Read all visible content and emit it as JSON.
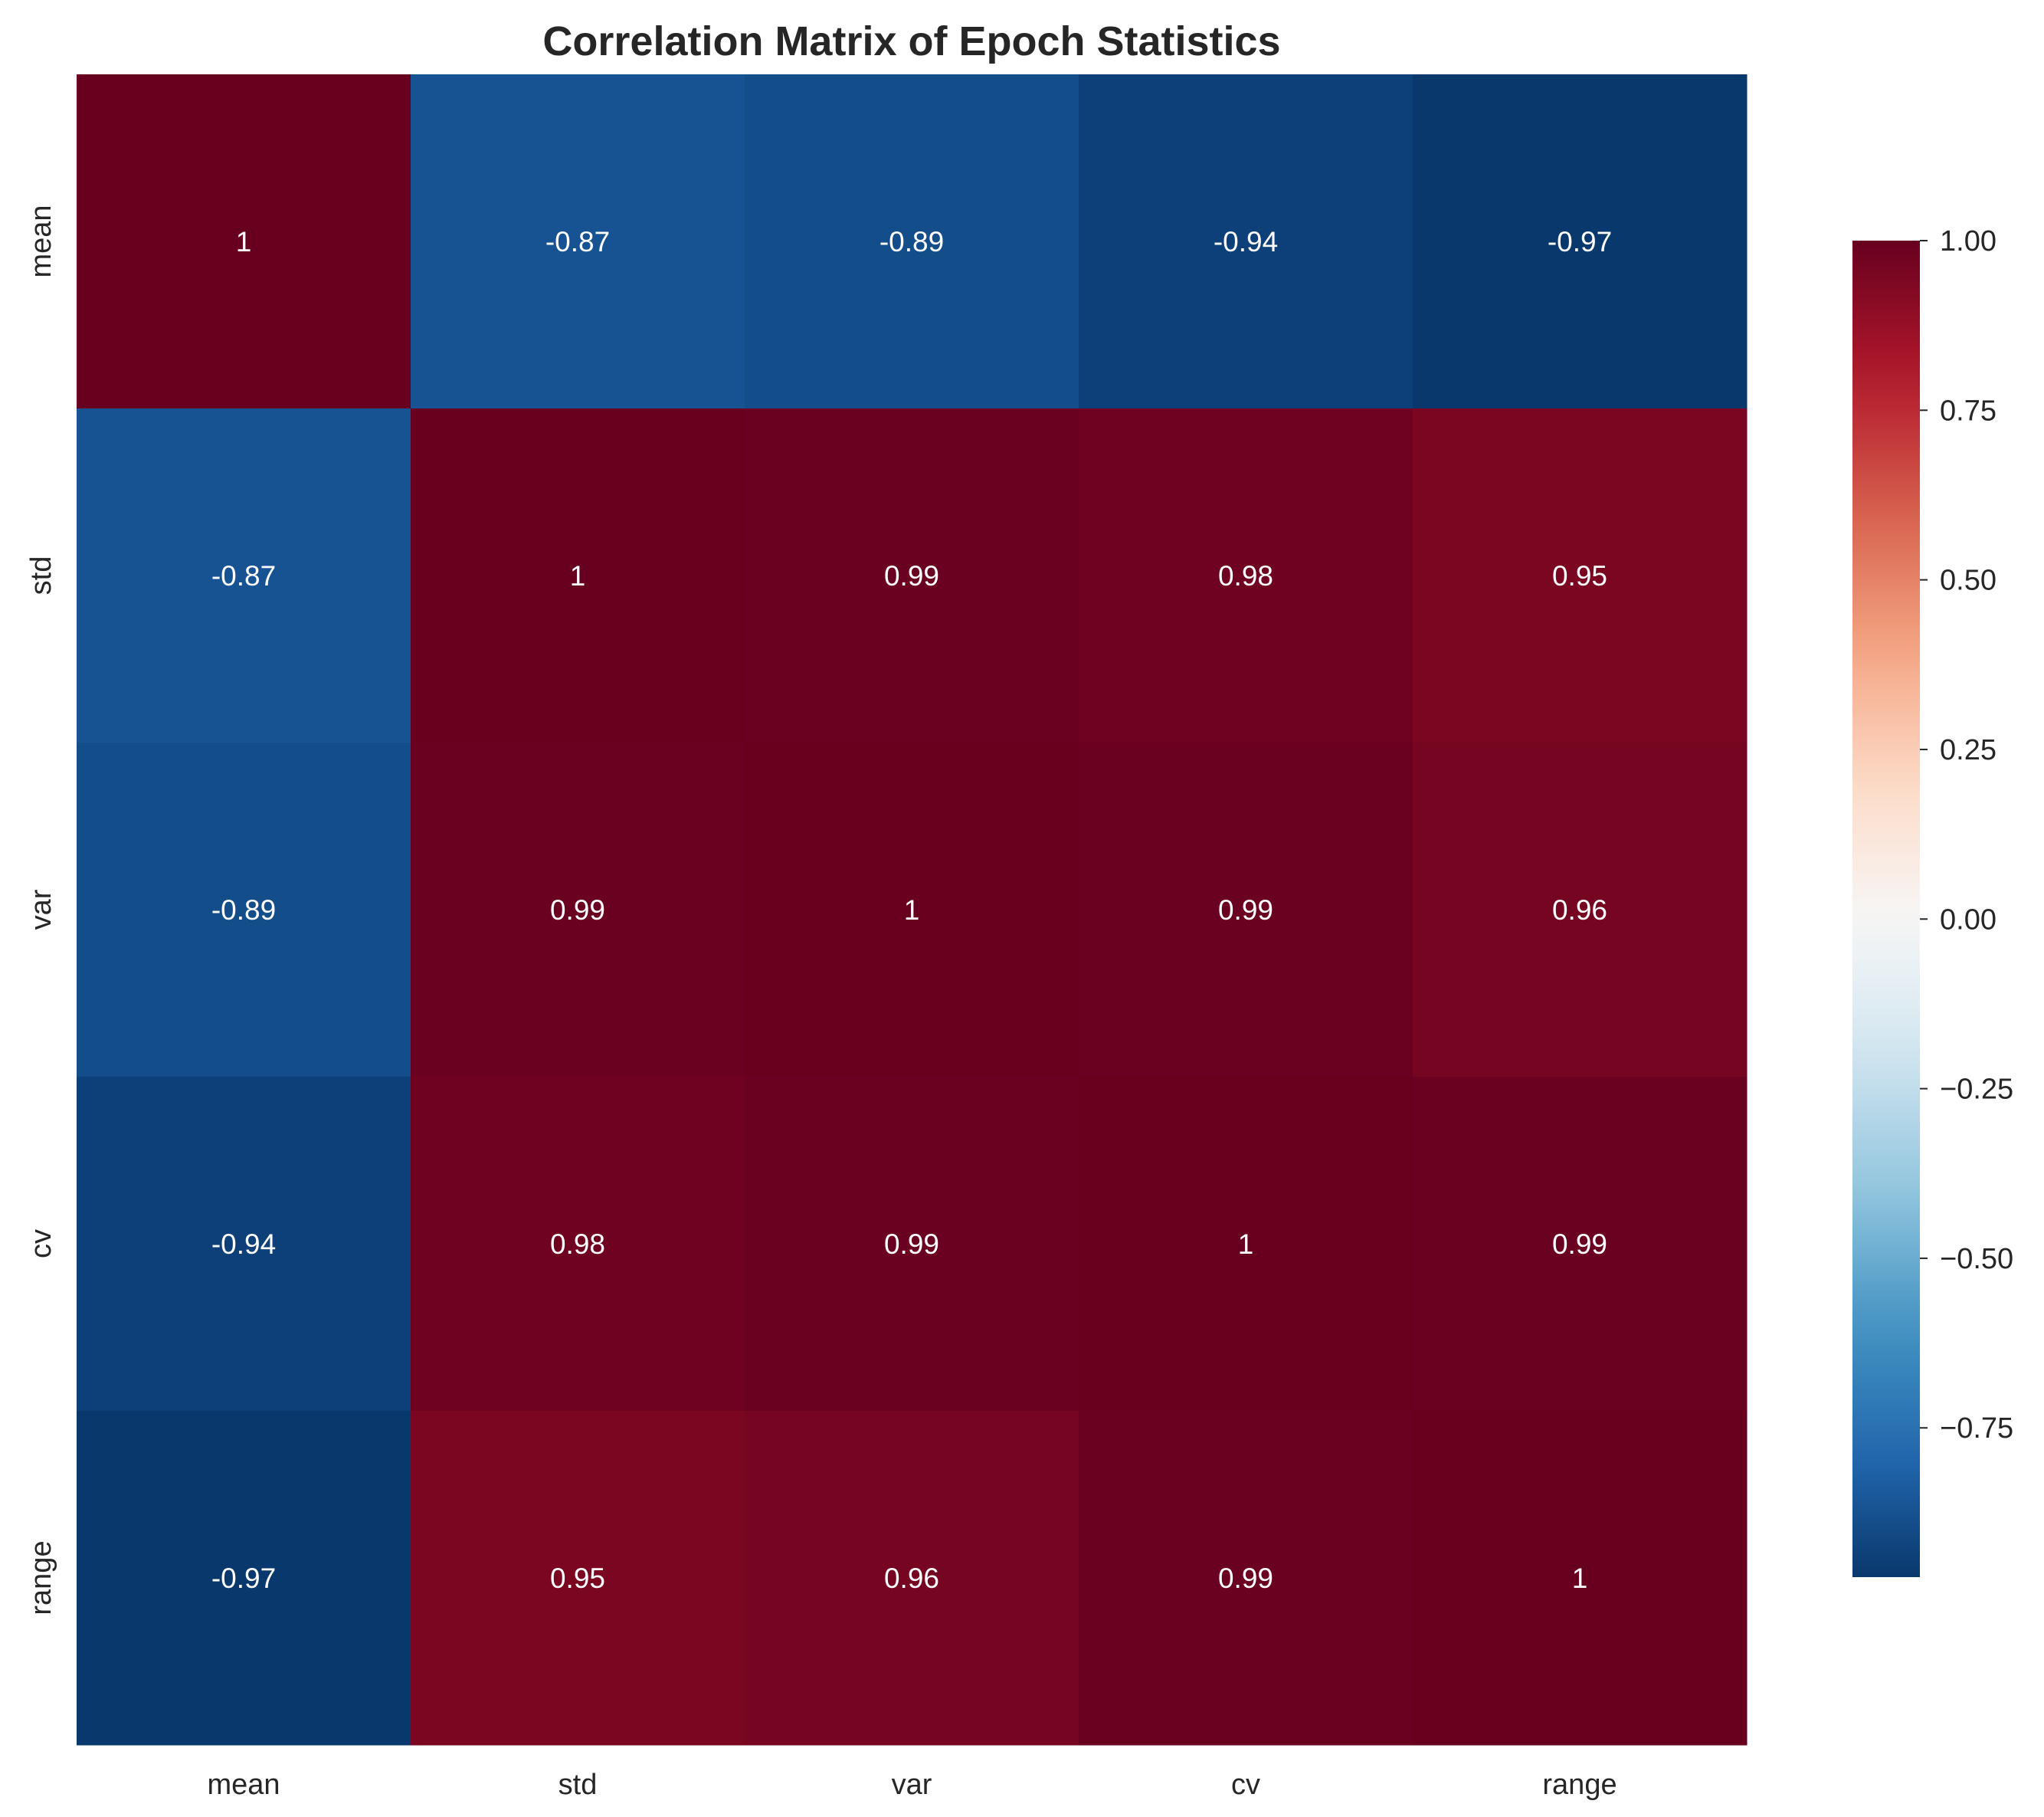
{
  "chart_data": {
    "type": "heatmap",
    "title": "Correlation Matrix of Epoch Statistics",
    "rows": [
      "mean",
      "std",
      "var",
      "cv",
      "range"
    ],
    "columns": [
      "mean",
      "std",
      "var",
      "cv",
      "range"
    ],
    "values": [
      [
        1,
        -0.87,
        -0.89,
        -0.94,
        -0.97
      ],
      [
        -0.87,
        1,
        0.99,
        0.98,
        0.95
      ],
      [
        -0.89,
        0.99,
        1,
        0.99,
        0.96
      ],
      [
        -0.94,
        0.98,
        0.99,
        1,
        0.99
      ],
      [
        -0.97,
        0.95,
        0.96,
        0.99,
        1
      ]
    ],
    "annotations": [
      [
        "1",
        "-0.87",
        "-0.89",
        "-0.94",
        "-0.97"
      ],
      [
        "-0.87",
        "1",
        "0.99",
        "0.98",
        "0.95"
      ],
      [
        "-0.89",
        "0.99",
        "1",
        "0.99",
        "0.96"
      ],
      [
        "-0.94",
        "0.98",
        "0.99",
        "1",
        "0.99"
      ],
      [
        "-0.97",
        "0.95",
        "0.96",
        "0.99",
        "1"
      ]
    ],
    "colormap": "RdBu_r",
    "colorbar": {
      "range": [
        -0.97,
        1.0
      ],
      "ticks": [
        1.0,
        0.75,
        0.5,
        0.25,
        0.0,
        -0.25,
        -0.5,
        -0.75
      ],
      "tick_labels": [
        "1.00",
        "0.75",
        "0.50",
        "0.25",
        "0.00",
        "−0.25",
        "−0.50",
        "−0.75"
      ],
      "position": "right"
    },
    "grid": false,
    "colors": {
      "deep_red": "#67001f",
      "red": "#b2182b",
      "salmon": "#d6604d",
      "peach": "#f4a582",
      "light_peach": "#fddbc7",
      "white": "#f7f7f7",
      "light_blue": "#d1e5f0",
      "sky_blue": "#92c5de",
      "blue": "#4393c3",
      "mid_blue": "#2166ac",
      "deep_blue": "#053061"
    }
  }
}
